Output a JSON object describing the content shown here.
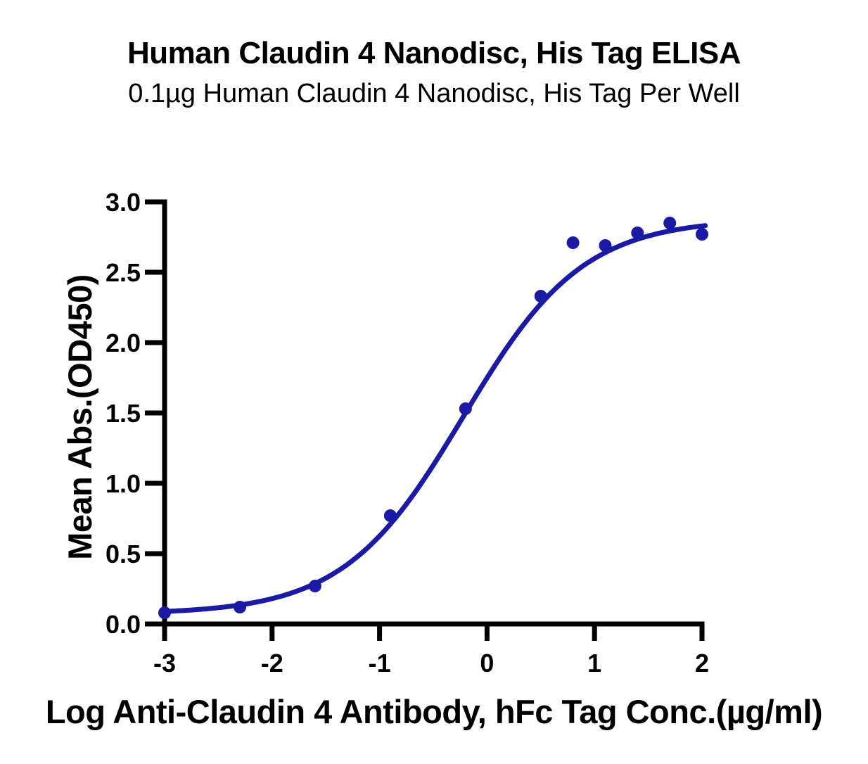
{
  "chart_data": {
    "type": "scatter",
    "title": "Human Claudin 4 Nanodisc, His Tag ELISA",
    "subtitle": "0.1µg Human Claudin 4 Nanodisc, His Tag Per Well",
    "xlabel": "Log Anti-Claudin 4 Antibody, hFc Tag Conc.(µg/ml)",
    "ylabel": "Mean Abs.(OD450)",
    "xlim": [
      -3,
      2
    ],
    "ylim": [
      0,
      3
    ],
    "grid": false,
    "legend": "none",
    "axis_color": "#000000",
    "marker_color": "#1a1aa5",
    "x_ticks": {
      "values": [
        -3,
        -2,
        -1,
        0,
        1,
        2
      ],
      "labels": [
        "-3",
        "-2",
        "-1",
        "0",
        "1",
        "2"
      ]
    },
    "y_ticks": {
      "values": [
        0,
        0.5,
        1.0,
        1.5,
        2.0,
        2.5,
        3.0
      ],
      "labels": [
        "0.0",
        "0.5",
        "1.0",
        "1.5",
        "2.0",
        "2.5",
        "3.0"
      ]
    },
    "points": [
      {
        "x": -3.0,
        "y": 0.08
      },
      {
        "x": -2.3,
        "y": 0.12
      },
      {
        "x": -1.6,
        "y": 0.27
      },
      {
        "x": -0.9,
        "y": 0.77
      },
      {
        "x": -0.2,
        "y": 1.53
      },
      {
        "x": 0.5,
        "y": 2.33
      },
      {
        "x": 0.8,
        "y": 2.71
      },
      {
        "x": 1.1,
        "y": 2.69
      },
      {
        "x": 1.4,
        "y": 2.78
      },
      {
        "x": 1.7,
        "y": 2.85
      },
      {
        "x": 2.0,
        "y": 2.77
      }
    ],
    "fit_curve": {
      "model": "4PL",
      "bottom": 0.07,
      "top": 2.88,
      "log_ec50": -0.22,
      "hill_slope": 0.78,
      "color": "#1a1aa5",
      "x_start": -3.0,
      "x_end": 2.03
    }
  }
}
